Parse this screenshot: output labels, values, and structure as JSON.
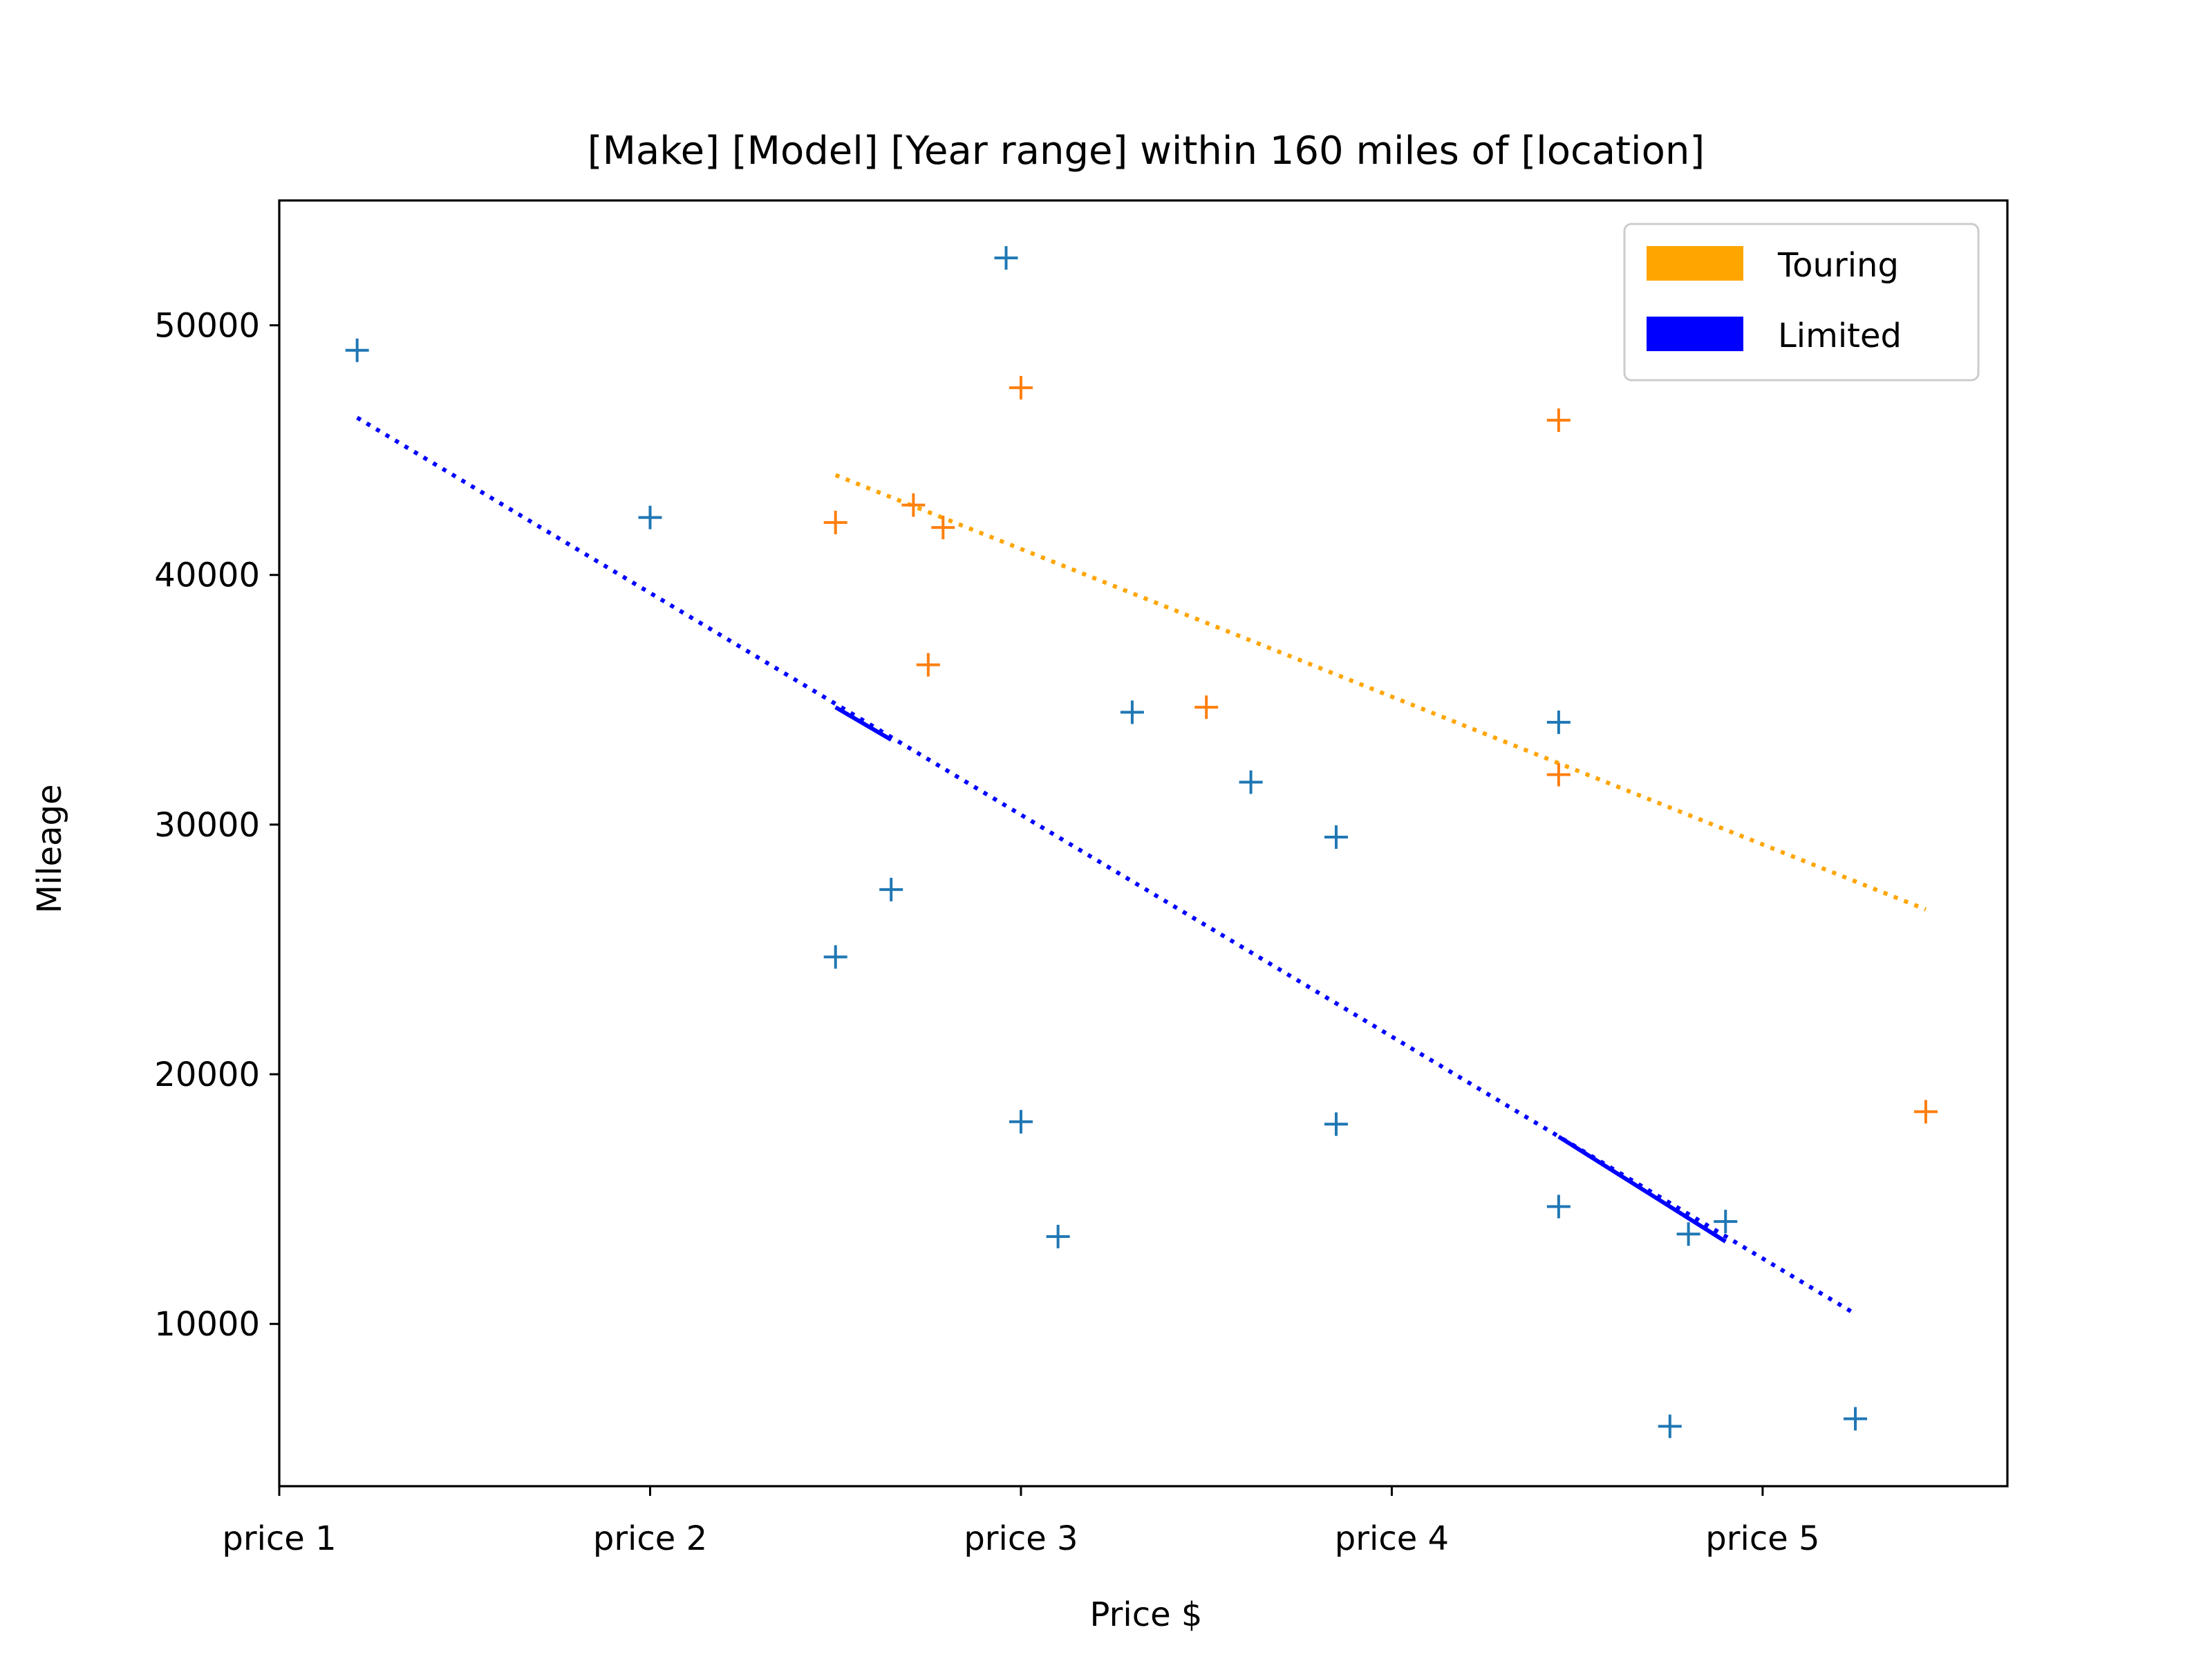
{
  "chart_data": {
    "type": "scatter",
    "title": "[Make] [Model] [Year range] within 160 miles of [location]",
    "xlabel": "Price $",
    "ylabel": "Mileage",
    "xlim": [
      0,
      4.66
    ],
    "ylim": [
      3500,
      55000
    ],
    "x_ticks": [
      {
        "value": 0,
        "label": "price 1"
      },
      {
        "value": 1,
        "label": "price 2"
      },
      {
        "value": 2,
        "label": "price 3"
      },
      {
        "value": 3,
        "label": "price 4"
      },
      {
        "value": 4,
        "label": "price 5"
      }
    ],
    "y_ticks": [
      10000,
      20000,
      30000,
      40000,
      50000
    ],
    "grid": false,
    "legend": {
      "position": "top-right",
      "entries": [
        {
          "label": "Touring",
          "color": "#ffa500"
        },
        {
          "label": "Limited",
          "color": "#0000ff"
        }
      ]
    },
    "series": [
      {
        "color": "#ff7f0e",
        "marker": "plus",
        "points": [
          {
            "x": 1.5,
            "y": 42100
          },
          {
            "x": 1.71,
            "y": 42800
          },
          {
            "x": 1.79,
            "y": 41900
          },
          {
            "x": 1.75,
            "y": 36400
          },
          {
            "x": 2.0,
            "y": 47500
          },
          {
            "x": 2.5,
            "y": 34700
          },
          {
            "x": 3.45,
            "y": 46200
          },
          {
            "x": 3.45,
            "y": 32000
          },
          {
            "x": 4.44,
            "y": 18500
          }
        ]
      },
      {
        "color": "#1f77b4",
        "marker": "plus",
        "points": [
          {
            "x": 0.21,
            "y": 49000
          },
          {
            "x": 1.0,
            "y": 42300
          },
          {
            "x": 1.96,
            "y": 52700
          },
          {
            "x": 1.5,
            "y": 24700
          },
          {
            "x": 1.65,
            "y": 27400
          },
          {
            "x": 2.0,
            "y": 18100
          },
          {
            "x": 2.1,
            "y": 13500
          },
          {
            "x": 2.3,
            "y": 34500
          },
          {
            "x": 2.62,
            "y": 31700
          },
          {
            "x": 2.85,
            "y": 29500
          },
          {
            "x": 2.85,
            "y": 18000
          },
          {
            "x": 3.45,
            "y": 34100
          },
          {
            "x": 3.45,
            "y": 14700
          },
          {
            "x": 3.8,
            "y": 13600
          },
          {
            "x": 3.9,
            "y": 14100
          },
          {
            "x": 3.75,
            "y": 5900
          },
          {
            "x": 4.25,
            "y": 6200
          }
        ]
      }
    ],
    "trend_lines": [
      {
        "legend": "Touring",
        "color": "#ffa500",
        "style": "dotted",
        "x": [
          1.5,
          4.44
        ],
        "y": [
          44000,
          26600
        ]
      },
      {
        "legend": "Limited",
        "color": "#0000ff",
        "style": "dotted",
        "x": [
          0.21,
          4.25
        ],
        "y": [
          46300,
          10400
        ]
      },
      {
        "legend": "Limited",
        "color": "#0000ff",
        "style": "solid",
        "x": [
          1.5,
          1.65
        ],
        "y": [
          34700,
          33400
        ]
      },
      {
        "legend": "Limited",
        "color": "#0000ff",
        "style": "solid",
        "x": [
          3.45,
          3.9
        ],
        "y": [
          17500,
          13300
        ]
      }
    ]
  }
}
